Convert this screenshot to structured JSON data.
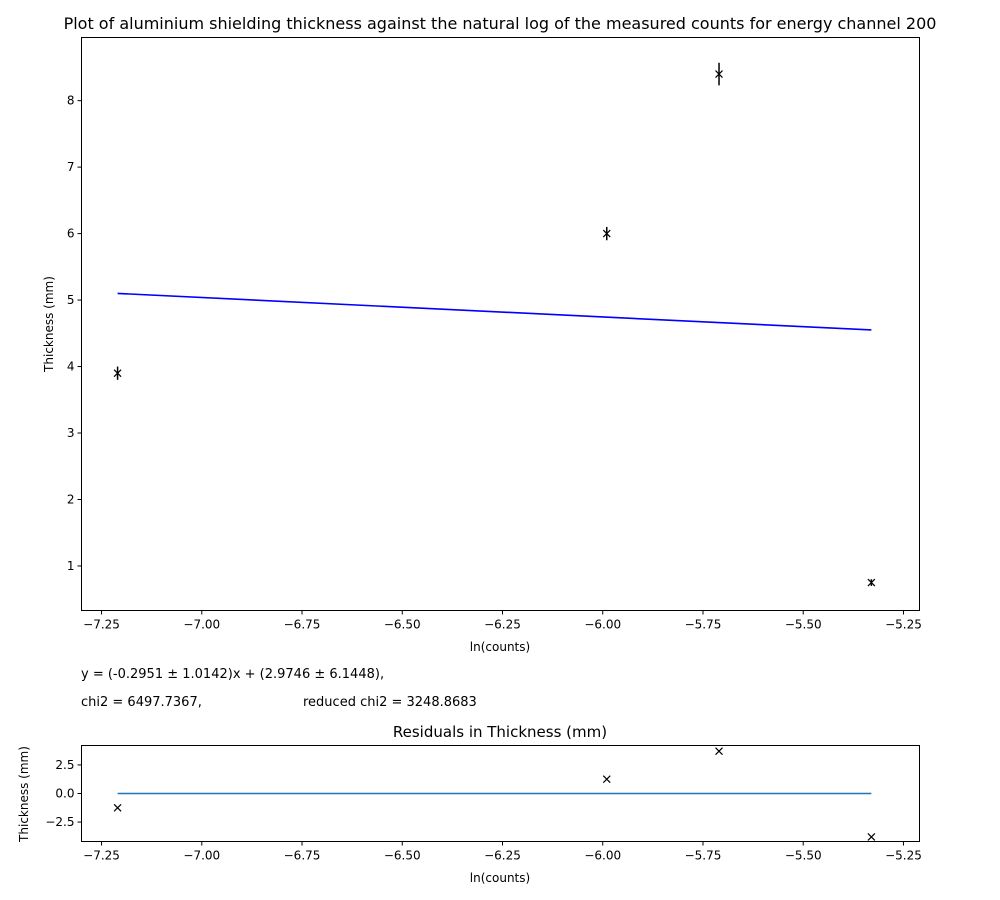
{
  "chart_data": [
    {
      "type": "scatter",
      "title": "Plot of aluminium shielding thickness against the natural log of the measured counts for energy channel 200",
      "xlabel": "ln(counts)",
      "ylabel": "Thickness (mm)",
      "xlim": [
        -7.3,
        -5.21
      ],
      "ylim": [
        0.33,
        8.95
      ],
      "xticks": [
        -7.25,
        -7.0,
        -6.75,
        -6.5,
        -6.25,
        -6.0,
        -5.75,
        -5.5,
        -5.25
      ],
      "xtick_labels": [
        "−7.25",
        "−7.00",
        "−6.75",
        "−6.50",
        "−6.25",
        "−6.00",
        "−5.75",
        "−5.50",
        "−5.25"
      ],
      "yticks": [
        1,
        2,
        3,
        4,
        5,
        6,
        7,
        8
      ],
      "ytick_labels": [
        "1",
        "2",
        "3",
        "4",
        "5",
        "6",
        "7",
        "8"
      ],
      "grid": false,
      "points": [
        {
          "x": -7.21,
          "y": 3.9,
          "yerr": 0.1
        },
        {
          "x": -5.99,
          "y": 6.0,
          "yerr": 0.1
        },
        {
          "x": -5.71,
          "y": 8.4,
          "yerr": 0.17
        },
        {
          "x": -5.33,
          "y": 0.75,
          "yerr": 0.05
        }
      ],
      "marker_color": "#000000",
      "fit_line": {
        "x": [
          -7.21,
          -5.33
        ],
        "y": [
          5.1,
          4.55
        ],
        "color": "#0000ff"
      },
      "annotations": {
        "equation": "y = (-0.2951 ± 1.0142)x + (2.9746 ± 6.1448),",
        "chi2": "chi2 = 6497.7367,",
        "reduced_chi2": "reduced chi2 = 3248.8683"
      }
    },
    {
      "type": "scatter",
      "title": "Residuals in Thickness (mm)",
      "xlabel": "ln(counts)",
      "ylabel": "Thickness (mm)",
      "xlim": [
        -7.3,
        -5.21
      ],
      "ylim": [
        -4.2,
        4.2
      ],
      "xticks": [
        -7.25,
        -7.0,
        -6.75,
        -6.5,
        -6.25,
        -6.0,
        -5.75,
        -5.5,
        -5.25
      ],
      "xtick_labels": [
        "−7.25",
        "−7.00",
        "−6.75",
        "−6.50",
        "−6.25",
        "−6.00",
        "−5.75",
        "−5.50",
        "−5.25"
      ],
      "yticks": [
        -2.5,
        0.0,
        2.5
      ],
      "ytick_labels": [
        "−2.5",
        "0.0",
        "2.5"
      ],
      "grid": false,
      "points": [
        {
          "x": -7.21,
          "y": -1.25
        },
        {
          "x": -5.99,
          "y": 1.25
        },
        {
          "x": -5.71,
          "y": 3.7
        },
        {
          "x": -5.33,
          "y": -3.8
        }
      ],
      "marker_color": "#000000",
      "zero_line": {
        "x": [
          -7.21,
          -5.33
        ],
        "y": [
          0,
          0
        ],
        "color": "#1f77b4"
      }
    }
  ]
}
